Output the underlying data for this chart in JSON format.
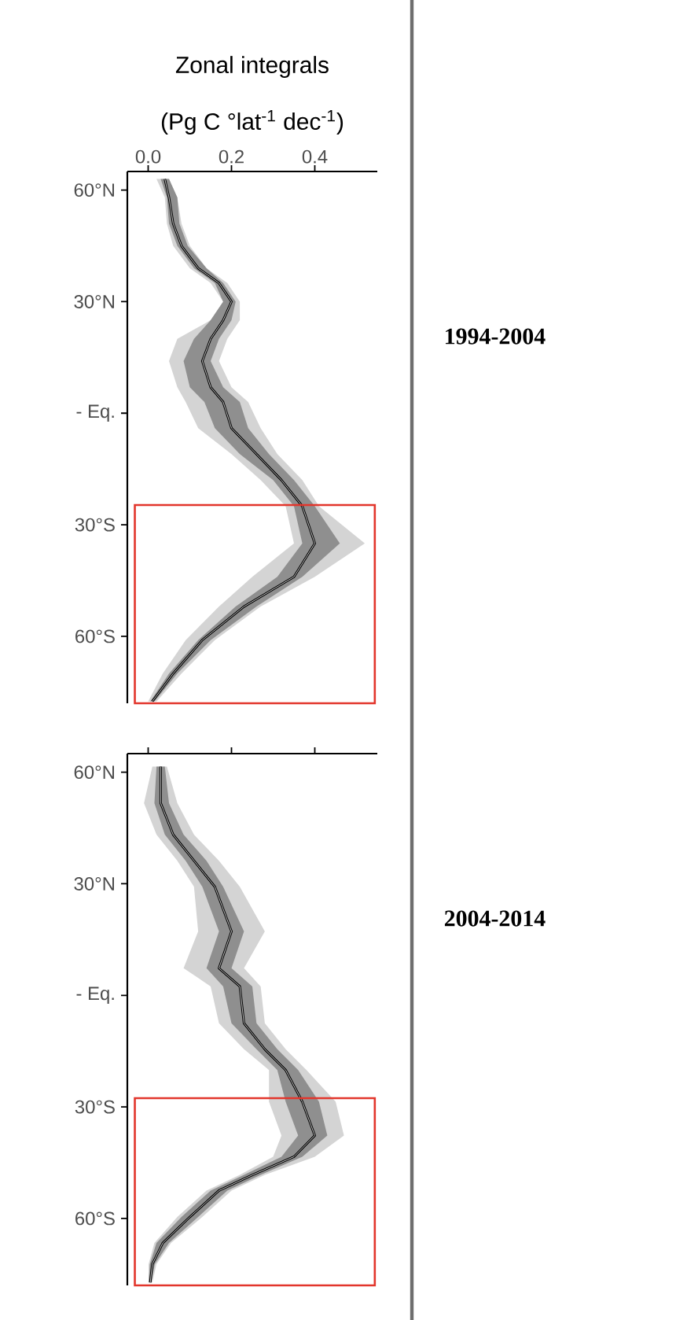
{
  "chart_data": [
    {
      "type": "line",
      "orientation": "horizontal",
      "title": "Zonal integrals",
      "xlabel": "(Pg C °lat$^{-1}$ dec$^{-1}$)",
      "annotations": [
        "1994-2004"
      ],
      "xlim": [
        -0.05,
        0.55
      ],
      "ylim": [
        -78,
        65
      ],
      "xticks": [
        {
          "value": 0,
          "label": "0.0"
        },
        {
          "value": 0.2,
          "label": "0.2"
        },
        {
          "value": 0.4,
          "label": "0.4"
        }
      ],
      "yticks": [
        {
          "value": 60,
          "label": "60°N"
        },
        {
          "value": 30,
          "label": "30°N"
        },
        {
          "value": 0,
          "label": "- Eq."
        },
        {
          "value": -30,
          "label": "30°S"
        },
        {
          "value": -60,
          "label": "60°S"
        }
      ],
      "grid": false,
      "marker": "none",
      "line_style": "solid",
      "series": [
        {
          "color": "#d4d4d4",
          "x": [
            63,
            58,
            51,
            45,
            39,
            35,
            30,
            25,
            20,
            14,
            7,
            3,
            -4,
            -11,
            -18,
            -25,
            -35,
            -44,
            -52,
            -61,
            -70,
            -77.5
          ],
          "values": [
            0.04,
            0.05,
            0.06,
            0.08,
            0.12,
            0.17,
            0.2,
            0.18,
            0.15,
            0.13,
            0.15,
            0.18,
            0.2,
            0.26,
            0.32,
            0.37,
            0.4,
            0.35,
            0.23,
            0.13,
            0.06,
            0.01
          ],
          "lower": [
            0.02,
            0.04,
            0.045,
            0.06,
            0.1,
            0.15,
            0.18,
            0.15,
            0.07,
            0.05,
            0.07,
            0.09,
            0.12,
            0.2,
            0.27,
            0.33,
            0.35,
            0.25,
            0.17,
            0.09,
            0.035,
            0.0
          ],
          "upper": [
            0.05,
            0.07,
            0.08,
            0.1,
            0.14,
            0.19,
            0.22,
            0.22,
            0.19,
            0.17,
            0.2,
            0.24,
            0.27,
            0.31,
            0.37,
            0.41,
            0.52,
            0.4,
            0.27,
            0.16,
            0.08,
            0.02
          ]
        },
        {
          "color": "#000000",
          "x": [
            63,
            58,
            51,
            45,
            39,
            35,
            30,
            25,
            20,
            14,
            7,
            3,
            -4,
            -11,
            -18,
            -25,
            -35,
            -44,
            -52,
            -61,
            -70,
            -77.5
          ],
          "values": [
            0.04,
            0.05,
            0.06,
            0.08,
            0.12,
            0.17,
            0.2,
            0.18,
            0.15,
            0.13,
            0.15,
            0.18,
            0.2,
            0.26,
            0.32,
            0.37,
            0.4,
            0.35,
            0.23,
            0.13,
            0.06,
            0.01
          ],
          "lower": [
            0.03,
            0.045,
            0.05,
            0.07,
            0.11,
            0.16,
            0.18,
            0.15,
            0.11,
            0.085,
            0.1,
            0.135,
            0.16,
            0.22,
            0.3,
            0.35,
            0.37,
            0.31,
            0.21,
            0.12,
            0.05,
            0.005
          ],
          "upper": [
            0.05,
            0.07,
            0.075,
            0.095,
            0.14,
            0.18,
            0.21,
            0.2,
            0.17,
            0.15,
            0.18,
            0.22,
            0.24,
            0.29,
            0.35,
            0.4,
            0.46,
            0.37,
            0.26,
            0.15,
            0.07,
            0.015
          ]
        }
      ]
    },
    {
      "type": "line",
      "orientation": "horizontal",
      "annotations": [
        "2004-2014"
      ],
      "tick_labels": "y",
      "xlim": [
        -0.05,
        0.55
      ],
      "ylim": [
        -78,
        65
      ],
      "xticks": [
        {
          "value": 0,
          "label": null
        },
        {
          "value": 0.2,
          "label": null
        },
        {
          "value": 0.4,
          "label": null
        }
      ],
      "yticks": [
        {
          "value": 60,
          "label": "60°N"
        },
        {
          "value": 30,
          "label": "30°N"
        },
        {
          "value": 0,
          "label": "- Eq."
        },
        {
          "value": -30,
          "label": "30°S"
        },
        {
          "value": -60,
          "label": "60°S"
        }
      ],
      "grid": false,
      "marker": "none",
      "line_style": "solid",
      "series": [
        {
          "color": "#d4d4d4",
          "x": [
            61.5,
            51.7,
            43.2,
            36.2,
            29.2,
            17.2,
            7.3,
            2.4,
            -7.5,
            -14.5,
            -20.1,
            -28.6,
            -37.7,
            -43.4,
            -48.3,
            -52.5,
            -59.6,
            -66.6,
            -72.3,
            -77.2
          ],
          "values": [
            0.03,
            0.03,
            0.06,
            0.11,
            0.16,
            0.2,
            0.17,
            0.22,
            0.23,
            0.28,
            0.33,
            0.37,
            0.4,
            0.35,
            0.25,
            0.17,
            0.1,
            0.035,
            0.01,
            0.005
          ],
          "lower": [
            0.01,
            -0.01,
            0.02,
            0.07,
            0.11,
            0.12,
            0.085,
            0.15,
            0.17,
            0.23,
            0.29,
            0.29,
            0.32,
            0.3,
            0.22,
            0.14,
            0.07,
            0.015,
            0.001,
            0.001
          ],
          "upper": [
            0.045,
            0.07,
            0.11,
            0.17,
            0.22,
            0.28,
            0.23,
            0.27,
            0.28,
            0.33,
            0.38,
            0.45,
            0.47,
            0.4,
            0.28,
            0.2,
            0.13,
            0.055,
            0.02,
            0.01
          ]
        },
        {
          "color": "#000000",
          "x": [
            61.5,
            51.7,
            43.2,
            36.2,
            29.2,
            17.2,
            7.3,
            2.4,
            -7.5,
            -14.5,
            -20.1,
            -28.6,
            -37.7,
            -43.4,
            -48.3,
            -52.5,
            -59.6,
            -66.6,
            -72.3,
            -77.2
          ],
          "values": [
            0.03,
            0.03,
            0.06,
            0.11,
            0.16,
            0.2,
            0.17,
            0.22,
            0.23,
            0.28,
            0.33,
            0.37,
            0.4,
            0.35,
            0.25,
            0.17,
            0.1,
            0.035,
            0.01,
            0.005
          ],
          "lower": [
            0.02,
            0.015,
            0.04,
            0.09,
            0.13,
            0.17,
            0.14,
            0.18,
            0.2,
            0.26,
            0.31,
            0.33,
            0.36,
            0.32,
            0.23,
            0.15,
            0.08,
            0.02,
            0.004,
            0.001
          ],
          "upper": [
            0.04,
            0.05,
            0.085,
            0.14,
            0.18,
            0.23,
            0.2,
            0.25,
            0.26,
            0.31,
            0.36,
            0.41,
            0.43,
            0.37,
            0.27,
            0.19,
            0.12,
            0.05,
            0.016,
            0.007
          ]
        }
      ]
    }
  ]
}
